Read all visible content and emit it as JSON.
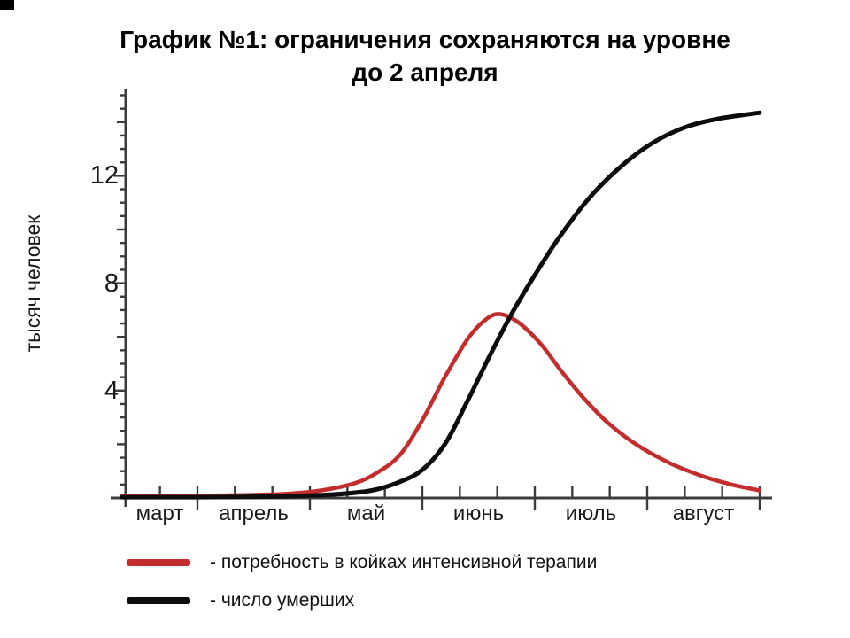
{
  "title": {
    "line1": "График №1: ограничения сохраняются на уровне",
    "line2": "до 2 апреля"
  },
  "chart_data": {
    "type": "line",
    "title": "График №1: ограничения сохраняются на уровне до 2 апреля",
    "xlabel": "",
    "ylabel": "тысяч человек",
    "x_tick_labels": [
      "март",
      "апрель",
      "май",
      "июнь",
      "июль",
      "август"
    ],
    "y_tick_labels": [
      4,
      8,
      12
    ],
    "ylim": [
      0,
      15.2
    ],
    "x_unit": "months, 0 = начало марта",
    "xlim": [
      0.33,
      6.11
    ],
    "grid": false,
    "legend_position": "below-left",
    "axis_color": "#3c3c3c",
    "series": [
      {
        "name": "- потребность в койках интенсивной терапии",
        "color": "#c32d2d",
        "peak": {
          "x": 3.68,
          "value": 6.85
        },
        "points": [
          [
            0.33,
            0.08
          ],
          [
            0.8,
            0.08
          ],
          [
            1.3,
            0.1
          ],
          [
            1.8,
            0.16
          ],
          [
            2.1,
            0.28
          ],
          [
            2.4,
            0.55
          ],
          [
            2.6,
            0.95
          ],
          [
            2.8,
            1.6
          ],
          [
            3.0,
            2.9
          ],
          [
            3.2,
            4.5
          ],
          [
            3.4,
            5.9
          ],
          [
            3.55,
            6.6
          ],
          [
            3.68,
            6.85
          ],
          [
            3.85,
            6.55
          ],
          [
            4.05,
            5.75
          ],
          [
            4.25,
            4.65
          ],
          [
            4.45,
            3.65
          ],
          [
            4.65,
            2.8
          ],
          [
            4.9,
            2.0
          ],
          [
            5.2,
            1.3
          ],
          [
            5.5,
            0.8
          ],
          [
            5.75,
            0.5
          ],
          [
            6.0,
            0.28
          ]
        ]
      },
      {
        "name": "- число умерших",
        "color": "#0d0d0d",
        "final_value": 14.35,
        "points": [
          [
            0.33,
            0.03
          ],
          [
            1.0,
            0.03
          ],
          [
            1.7,
            0.06
          ],
          [
            2.2,
            0.13
          ],
          [
            2.55,
            0.28
          ],
          [
            2.8,
            0.6
          ],
          [
            3.0,
            1.05
          ],
          [
            3.2,
            2.0
          ],
          [
            3.4,
            3.6
          ],
          [
            3.6,
            5.3
          ],
          [
            3.8,
            6.9
          ],
          [
            4.0,
            8.3
          ],
          [
            4.2,
            9.6
          ],
          [
            4.45,
            11.0
          ],
          [
            4.7,
            12.1
          ],
          [
            5.0,
            13.1
          ],
          [
            5.3,
            13.75
          ],
          [
            5.6,
            14.1
          ],
          [
            6.0,
            14.35
          ]
        ]
      }
    ]
  }
}
